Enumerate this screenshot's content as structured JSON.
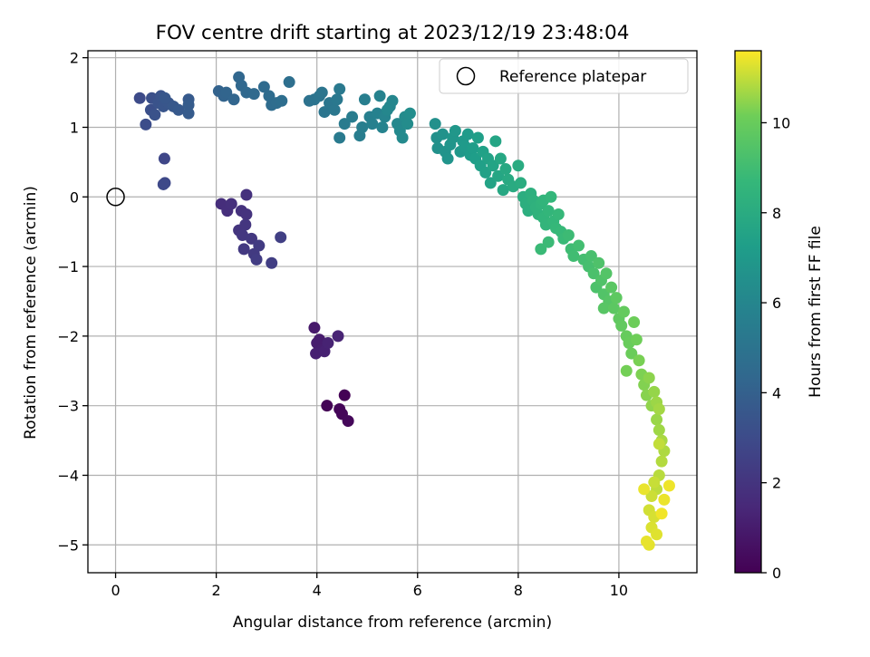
{
  "chart_data": {
    "type": "scatter",
    "title": "FOV centre drift starting at 2023/12/19 23:48:04",
    "xlabel": "Angular distance from reference (arcmin)",
    "ylabel": "Rotation from reference (arcmin)",
    "xlim": [
      -0.55,
      11.55
    ],
    "ylim": [
      -5.4,
      2.1
    ],
    "xticks": [
      0,
      2,
      4,
      6,
      8,
      10
    ],
    "yticks": [
      -5,
      -4,
      -3,
      -2,
      -1,
      0,
      1,
      2
    ],
    "grid": true,
    "legend": {
      "position": "top-right",
      "entries": [
        "Reference platepar"
      ]
    },
    "reference_point": {
      "label": "Reference platepar",
      "x": 0,
      "y": 0
    },
    "colorbar": {
      "label": "Hours from first FF file",
      "range": [
        0,
        11.6
      ],
      "ticks": [
        0,
        2,
        4,
        6,
        8,
        10
      ],
      "colormap": "viridis"
    },
    "series": [
      {
        "name": "Hours from first FF file",
        "points": [
          [
            4.55,
            -2.85,
            0.05
          ],
          [
            4.2,
            -3.0,
            0.1
          ],
          [
            4.45,
            -3.05,
            0.15
          ],
          [
            4.5,
            -3.12,
            0.2
          ],
          [
            4.62,
            -3.22,
            0.25
          ],
          [
            3.95,
            -1.88,
            0.9
          ],
          [
            4.05,
            -2.05,
            1.0
          ],
          [
            4.0,
            -2.1,
            1.05
          ],
          [
            4.1,
            -2.2,
            1.1
          ],
          [
            3.98,
            -2.25,
            1.15
          ],
          [
            4.15,
            -2.22,
            1.2
          ],
          [
            4.22,
            -2.1,
            1.25
          ],
          [
            4.42,
            -2.0,
            1.3
          ],
          [
            2.1,
            -0.1,
            1.7
          ],
          [
            2.22,
            -0.2,
            1.75
          ],
          [
            2.3,
            -0.1,
            1.8
          ],
          [
            2.6,
            0.03,
            1.85
          ],
          [
            2.5,
            -0.2,
            1.9
          ],
          [
            2.6,
            -0.25,
            1.95
          ],
          [
            2.45,
            -0.48,
            2.0
          ],
          [
            2.58,
            -0.4,
            2.05
          ],
          [
            2.52,
            -0.55,
            2.1
          ],
          [
            2.7,
            -0.6,
            2.15
          ],
          [
            2.55,
            -0.75,
            2.2
          ],
          [
            2.75,
            -0.82,
            2.25
          ],
          [
            2.85,
            -0.7,
            2.3
          ],
          [
            2.8,
            -0.9,
            2.35
          ],
          [
            3.1,
            -0.95,
            2.4
          ],
          [
            3.28,
            -0.58,
            2.45
          ],
          [
            0.97,
            0.55,
            2.8
          ],
          [
            0.98,
            0.2,
            2.85
          ],
          [
            0.95,
            0.18,
            2.9
          ],
          [
            0.48,
            1.42,
            3.0
          ],
          [
            0.6,
            1.04,
            3.1
          ],
          [
            0.7,
            1.25,
            3.2
          ],
          [
            0.72,
            1.42,
            3.25
          ],
          [
            0.78,
            1.18,
            3.3
          ],
          [
            0.85,
            1.35,
            3.35
          ],
          [
            0.9,
            1.45,
            3.4
          ],
          [
            0.95,
            1.3,
            3.45
          ],
          [
            1.05,
            1.35,
            3.5
          ],
          [
            0.98,
            1.42,
            3.55
          ],
          [
            1.15,
            1.3,
            3.6
          ],
          [
            1.25,
            1.25,
            3.65
          ],
          [
            1.45,
            1.4,
            3.7
          ],
          [
            1.45,
            1.2,
            3.75
          ],
          [
            1.45,
            1.32,
            3.8
          ],
          [
            2.05,
            1.52,
            4.1
          ],
          [
            2.15,
            1.45,
            4.15
          ],
          [
            2.2,
            1.5,
            4.2
          ],
          [
            2.35,
            1.4,
            4.25
          ],
          [
            2.45,
            1.72,
            4.3
          ],
          [
            2.5,
            1.6,
            4.35
          ],
          [
            2.6,
            1.5,
            4.4
          ],
          [
            2.75,
            1.48,
            4.45
          ],
          [
            2.95,
            1.58,
            4.5
          ],
          [
            3.05,
            1.45,
            4.55
          ],
          [
            3.1,
            1.32,
            4.6
          ],
          [
            3.2,
            1.35,
            4.65
          ],
          [
            3.3,
            1.38,
            4.7
          ],
          [
            3.45,
            1.65,
            4.75
          ],
          [
            3.85,
            1.38,
            4.9
          ],
          [
            3.95,
            1.4,
            4.95
          ],
          [
            4.05,
            1.45,
            5.0
          ],
          [
            4.1,
            1.5,
            5.05
          ],
          [
            4.15,
            1.22,
            5.1
          ],
          [
            4.25,
            1.35,
            5.15
          ],
          [
            4.35,
            1.25,
            5.2
          ],
          [
            4.4,
            1.4,
            5.25
          ],
          [
            4.45,
            1.55,
            5.3
          ],
          [
            4.45,
            0.85,
            5.35
          ],
          [
            4.55,
            1.05,
            5.4
          ],
          [
            4.7,
            1.15,
            5.45
          ],
          [
            4.85,
            0.88,
            5.5
          ],
          [
            4.9,
            1.0,
            5.55
          ],
          [
            4.95,
            1.4,
            5.6
          ],
          [
            5.05,
            1.15,
            5.65
          ],
          [
            5.1,
            1.05,
            5.7
          ],
          [
            5.2,
            1.2,
            5.75
          ],
          [
            5.25,
            1.45,
            5.8
          ],
          [
            5.3,
            1.0,
            5.85
          ],
          [
            5.35,
            1.15,
            5.9
          ],
          [
            5.45,
            1.3,
            5.95
          ],
          [
            5.5,
            1.38,
            6.0
          ],
          [
            5.4,
            1.25,
            6.05
          ],
          [
            5.6,
            1.05,
            6.1
          ],
          [
            5.65,
            0.95,
            6.15
          ],
          [
            5.7,
            0.85,
            6.2
          ],
          [
            5.75,
            1.15,
            6.25
          ],
          [
            5.8,
            1.05,
            6.3
          ],
          [
            5.85,
            1.2,
            6.35
          ],
          [
            6.35,
            1.05,
            6.5
          ],
          [
            6.38,
            0.85,
            6.55
          ],
          [
            6.4,
            0.7,
            6.6
          ],
          [
            6.5,
            0.9,
            6.65
          ],
          [
            6.55,
            0.65,
            6.7
          ],
          [
            6.6,
            0.55,
            6.75
          ],
          [
            6.65,
            0.75,
            6.8
          ],
          [
            6.7,
            0.85,
            6.85
          ],
          [
            6.75,
            0.95,
            6.9
          ],
          [
            6.85,
            0.65,
            6.95
          ],
          [
            6.9,
            0.8,
            7.0
          ],
          [
            6.95,
            0.72,
            7.05
          ],
          [
            7.0,
            0.9,
            7.1
          ],
          [
            7.05,
            0.6,
            7.15
          ],
          [
            7.1,
            0.7,
            7.2
          ],
          [
            7.15,
            0.55,
            7.25
          ],
          [
            7.2,
            0.85,
            7.3
          ],
          [
            7.25,
            0.45,
            7.35
          ],
          [
            7.3,
            0.65,
            7.4
          ],
          [
            7.35,
            0.35,
            7.45
          ],
          [
            7.4,
            0.55,
            7.5
          ],
          [
            7.45,
            0.2,
            7.55
          ],
          [
            7.5,
            0.45,
            7.6
          ],
          [
            7.55,
            0.8,
            7.65
          ],
          [
            7.6,
            0.3,
            7.7
          ],
          [
            7.65,
            0.55,
            7.75
          ],
          [
            7.7,
            0.1,
            7.8
          ],
          [
            7.75,
            0.4,
            7.85
          ],
          [
            7.8,
            0.25,
            7.9
          ],
          [
            7.9,
            0.15,
            7.95
          ],
          [
            8.0,
            0.45,
            8.0
          ],
          [
            8.05,
            0.2,
            8.05
          ],
          [
            8.1,
            0.0,
            8.1
          ],
          [
            8.15,
            -0.1,
            8.15
          ],
          [
            8.2,
            -0.2,
            8.2
          ],
          [
            8.25,
            0.05,
            8.25
          ],
          [
            8.3,
            -0.05,
            8.3
          ],
          [
            8.35,
            -0.15,
            8.35
          ],
          [
            8.4,
            -0.25,
            8.4
          ],
          [
            8.45,
            -0.1,
            8.45
          ],
          [
            8.5,
            -0.3,
            8.5
          ],
          [
            8.5,
            -0.05,
            8.52
          ],
          [
            8.55,
            -0.4,
            8.55
          ],
          [
            8.6,
            -0.2,
            8.6
          ],
          [
            8.65,
            0.0,
            8.62
          ],
          [
            8.7,
            -0.35,
            8.65
          ],
          [
            8.75,
            -0.45,
            8.7
          ],
          [
            8.8,
            -0.25,
            8.72
          ],
          [
            8.85,
            -0.5,
            8.75
          ],
          [
            8.9,
            -0.6,
            8.8
          ],
          [
            8.45,
            -0.75,
            8.82
          ],
          [
            8.6,
            -0.65,
            8.85
          ],
          [
            9.0,
            -0.55,
            8.9
          ],
          [
            9.05,
            -0.75,
            8.95
          ],
          [
            9.1,
            -0.85,
            9.0
          ],
          [
            9.2,
            -0.7,
            9.05
          ],
          [
            9.3,
            -0.9,
            9.1
          ],
          [
            9.4,
            -1.0,
            9.15
          ],
          [
            9.45,
            -0.85,
            9.2
          ],
          [
            9.5,
            -1.1,
            9.25
          ],
          [
            9.55,
            -1.3,
            9.3
          ],
          [
            9.6,
            -0.95,
            9.35
          ],
          [
            9.65,
            -1.2,
            9.4
          ],
          [
            9.7,
            -1.4,
            9.45
          ],
          [
            9.75,
            -1.1,
            9.5
          ],
          [
            9.8,
            -1.5,
            9.55
          ],
          [
            9.7,
            -1.6,
            9.6
          ],
          [
            9.85,
            -1.3,
            9.65
          ],
          [
            9.9,
            -1.6,
            9.7
          ],
          [
            9.95,
            -1.45,
            9.75
          ],
          [
            10.0,
            -1.75,
            9.8
          ],
          [
            10.05,
            -1.85,
            9.85
          ],
          [
            10.1,
            -1.65,
            9.9
          ],
          [
            10.15,
            -2.0,
            9.95
          ],
          [
            10.2,
            -2.1,
            10.0
          ],
          [
            10.25,
            -2.25,
            10.05
          ],
          [
            10.3,
            -1.8,
            10.1
          ],
          [
            10.35,
            -2.05,
            10.15
          ],
          [
            10.15,
            -2.5,
            10.2
          ],
          [
            10.4,
            -2.35,
            10.25
          ],
          [
            10.45,
            -2.55,
            10.3
          ],
          [
            10.5,
            -2.7,
            10.35
          ],
          [
            10.55,
            -2.85,
            10.4
          ],
          [
            10.6,
            -2.6,
            10.45
          ],
          [
            10.65,
            -3.0,
            10.5
          ],
          [
            10.7,
            -2.8,
            10.55
          ],
          [
            10.75,
            -3.2,
            10.6
          ],
          [
            10.75,
            -2.95,
            10.62
          ],
          [
            10.8,
            -3.35,
            10.65
          ],
          [
            10.8,
            -3.05,
            10.7
          ],
          [
            10.85,
            -3.5,
            10.75
          ],
          [
            10.9,
            -3.65,
            10.8
          ],
          [
            10.85,
            -3.8,
            10.85
          ],
          [
            10.8,
            -4.0,
            10.9
          ],
          [
            10.75,
            -4.2,
            10.95
          ],
          [
            10.8,
            -3.55,
            11.0
          ],
          [
            10.7,
            -4.1,
            11.05
          ],
          [
            10.65,
            -4.3,
            11.1
          ],
          [
            10.6,
            -4.5,
            11.15
          ],
          [
            10.7,
            -4.6,
            11.2
          ],
          [
            10.65,
            -4.75,
            11.25
          ],
          [
            10.75,
            -4.85,
            11.3
          ],
          [
            10.6,
            -5.0,
            11.35
          ],
          [
            10.55,
            -4.95,
            11.38
          ],
          [
            10.5,
            -4.2,
            11.4
          ],
          [
            10.9,
            -4.35,
            11.42
          ],
          [
            11.0,
            -4.15,
            11.45
          ],
          [
            10.85,
            -4.55,
            11.48
          ]
        ]
      }
    ]
  }
}
